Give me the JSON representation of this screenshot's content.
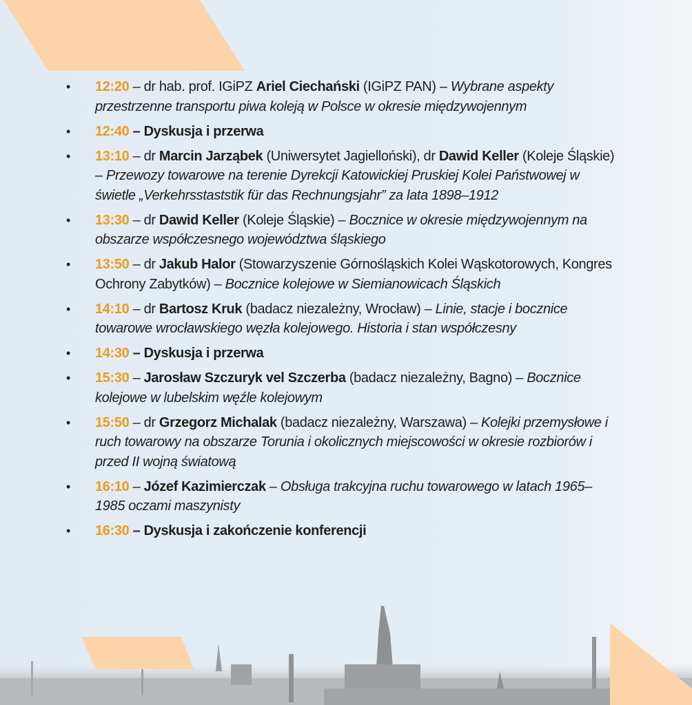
{
  "colors": {
    "time": "#ef9a1e",
    "accent_shape": "#fdd3aa",
    "background": "#e3ecf4"
  },
  "agenda": [
    {
      "time": "12:20",
      "parts": [
        [
          "n",
          " – dr hab. prof. IGiPZ "
        ],
        [
          "b",
          "Ariel Ciechański"
        ],
        [
          "n",
          " (IGiPZ PAN) – "
        ],
        [
          "i",
          "Wybrane aspekty przestrzenne transportu piwa koleją w Polsce w okresie międzywojennym"
        ]
      ]
    },
    {
      "time": "12:40",
      "parts": [
        [
          "b",
          " – Dyskusja i przerwa"
        ]
      ]
    },
    {
      "time": "13:10",
      "parts": [
        [
          "n",
          " – dr "
        ],
        [
          "b",
          "Marcin Jarząbek"
        ],
        [
          "n",
          " (Uniwersytet Jagielloński), dr "
        ],
        [
          "b",
          "Dawid Keller"
        ],
        [
          "n",
          " (Koleje Śląskie) – "
        ],
        [
          "i",
          "Przewozy towarowe na terenie Dyrekcji Katowickiej Pruskiej Kolei Państwowej w świetle „Verkehrsstaststik für das Rechnungsjahr” za lata 1898–1912"
        ]
      ]
    },
    {
      "time": "13:30",
      "parts": [
        [
          "n",
          " – dr "
        ],
        [
          "b",
          "Dawid Keller"
        ],
        [
          "n",
          " (Koleje Śląskie) – "
        ],
        [
          "i",
          "Bocznice w okresie międzywojennym na obszarze współczesnego województwa śląskiego"
        ]
      ]
    },
    {
      "time": "13:50",
      "parts": [
        [
          "n",
          " – dr "
        ],
        [
          "b",
          "Jakub Halor"
        ],
        [
          "n",
          " (Stowarzyszenie Górnośląskich Kolei Wąskotorowych, Kongres Ochrony Zabytków) – "
        ],
        [
          "i",
          "Bocznice kolejowe w Siemianowicach Śląskich"
        ]
      ]
    },
    {
      "time": "14:10",
      "parts": [
        [
          "n",
          " – dr "
        ],
        [
          "b",
          "Bartosz Kruk"
        ],
        [
          "n",
          " (badacz niezależny, Wrocław) – "
        ],
        [
          "i",
          "Linie, stacje i bocznice towarowe wrocławskiego węzła kolejowego. Historia i stan współczesny"
        ]
      ]
    },
    {
      "time": "14:30",
      "parts": [
        [
          "b",
          " – Dyskusja i przerwa"
        ]
      ]
    },
    {
      "time": "15:30",
      "parts": [
        [
          "n",
          " – "
        ],
        [
          "b",
          "Jarosław Szczuryk vel Szczerba"
        ],
        [
          "n",
          " (badacz niezależny, Bagno) – "
        ],
        [
          "i",
          "Bocznice kolejowe w lubelskim węźle kolejowym"
        ]
      ]
    },
    {
      "time": "15:50",
      "parts": [
        [
          "n",
          " – dr "
        ],
        [
          "b",
          "Grzegorz Michalak"
        ],
        [
          "n",
          " (badacz niezależny, Warszawa) – "
        ],
        [
          "i",
          "Kolejki przemysłowe i ruch towarowy na obszarze Torunia i okolicznych miejscowości w okresie rozbiorów i przed II wojną światową"
        ]
      ]
    },
    {
      "time": "16:10",
      "parts": [
        [
          "n",
          " – "
        ],
        [
          "b",
          "Józef Kazimierczak"
        ],
        [
          "n",
          " – "
        ],
        [
          "i",
          "Obsługa trakcyjna ruchu towarowego w latach 1965–1985 oczami maszynisty"
        ]
      ]
    },
    {
      "time": "16:30",
      "parts": [
        [
          "b",
          " – Dyskusja i zakończenie konferencji"
        ]
      ]
    }
  ]
}
